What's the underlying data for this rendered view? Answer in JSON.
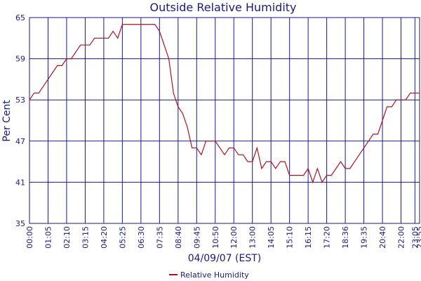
{
  "chart_data": {
    "type": "line",
    "title": "Outside Relative Humidity",
    "y_label": "Per Cent",
    "x_label": "04/09/07 (EST)",
    "categories": [
      "00:00",
      null,
      null,
      null,
      "01:05",
      null,
      null,
      null,
      "02:10",
      null,
      null,
      null,
      "03:15",
      null,
      null,
      null,
      "04:20",
      null,
      null,
      null,
      "05:25",
      null,
      null,
      null,
      "06:30",
      null,
      null,
      null,
      "07:35",
      null,
      null,
      null,
      "08:40",
      null,
      null,
      null,
      "09:45",
      null,
      null,
      null,
      "10:50",
      null,
      null,
      null,
      "12:00",
      null,
      null,
      null,
      "13:00",
      null,
      null,
      null,
      "14:05",
      null,
      null,
      null,
      "15:10",
      null,
      null,
      null,
      "16:15",
      null,
      null,
      null,
      "17:20",
      null,
      null,
      null,
      "18:36",
      null,
      null,
      null,
      "19:35",
      null,
      null,
      null,
      "20:40",
      null,
      null,
      null,
      "22:00",
      null,
      null,
      "23:05",
      "23:55"
    ],
    "series": [
      {
        "name": "Relative Humidity",
        "color": "#b01020",
        "values": [
          53,
          54,
          54,
          55,
          56,
          57,
          58,
          58,
          59,
          59,
          60,
          61,
          61,
          61,
          62,
          62,
          62,
          62,
          63,
          62,
          64,
          64,
          64,
          64,
          64,
          64,
          64,
          64,
          63,
          61,
          59,
          54,
          52,
          51,
          49,
          46,
          46,
          45,
          47,
          47,
          47,
          46,
          45,
          46,
          46,
          45,
          45,
          44,
          44,
          46,
          43,
          44,
          44,
          43,
          44,
          44,
          42,
          42,
          42,
          42,
          43,
          41,
          43,
          41,
          42,
          42,
          43,
          44,
          43,
          43,
          44,
          45,
          46,
          47,
          48,
          48,
          50,
          52,
          52,
          53,
          53,
          53,
          54,
          54,
          54
        ]
      }
    ],
    "ylim": [
      35,
      65
    ],
    "yticks": [
      35,
      41,
      47,
      53,
      59,
      65
    ],
    "grid": true,
    "legend": "bottom"
  }
}
